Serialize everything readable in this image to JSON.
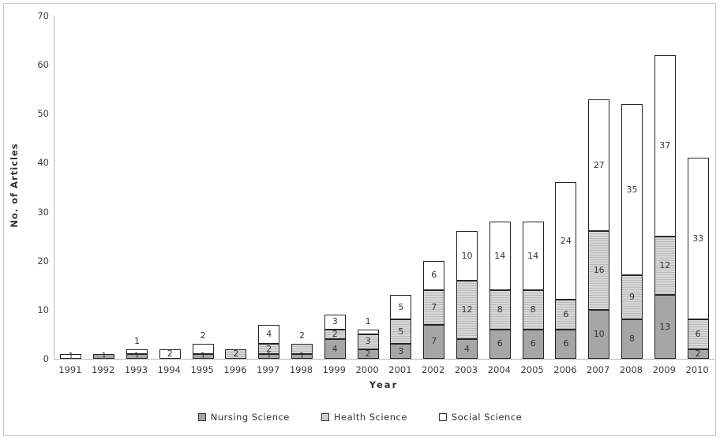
{
  "chart_data": {
    "type": "bar",
    "stacked": true,
    "title": "",
    "xlabel": "Year",
    "ylabel": "No. of Articles",
    "ylim": [
      0,
      70
    ],
    "yticks": [
      0,
      10,
      20,
      30,
      40,
      50,
      60,
      70
    ],
    "grid": false,
    "legend_position": "bottom",
    "categories": [
      "1991",
      "1992",
      "1993",
      "1994",
      "1995",
      "1996",
      "1997",
      "1998",
      "1999",
      "2000",
      "2001",
      "2002",
      "2003",
      "2004",
      "2005",
      "2006",
      "2007",
      "2008",
      "2009",
      "2010"
    ],
    "series": [
      {
        "name": "Nursing Science",
        "pattern": "solid",
        "color": "#a6a6a6",
        "values": [
          0,
          1,
          1,
          0,
          1,
          0,
          1,
          1,
          4,
          2,
          3,
          7,
          4,
          6,
          6,
          6,
          10,
          8,
          13,
          2
        ]
      },
      {
        "name": "Health Science",
        "pattern": "horizontal-stripes",
        "color": "#d7d7d7",
        "stripe_color": "#b9b9b9",
        "values": [
          0,
          0,
          0,
          0,
          0,
          2,
          2,
          2,
          2,
          3,
          5,
          7,
          12,
          8,
          8,
          6,
          16,
          9,
          12,
          6
        ]
      },
      {
        "name": "Social Science",
        "pattern": "solid",
        "color": "#ffffff",
        "values": [
          1,
          0,
          1,
          2,
          2,
          0,
          4,
          0,
          3,
          1,
          5,
          6,
          10,
          14,
          14,
          24,
          27,
          35,
          37,
          33
        ]
      }
    ],
    "totals": [
      1,
      1,
      2,
      2,
      3,
      2,
      7,
      3,
      9,
      6,
      13,
      20,
      26,
      28,
      28,
      36,
      53,
      52,
      62,
      41
    ],
    "bar_border_color": "#262626",
    "axis_color": "#b5b5b5",
    "text_color": "#333333"
  },
  "legend": {
    "items": [
      {
        "label": "Nursing Science"
      },
      {
        "label": "Health Science"
      },
      {
        "label": "Social Science"
      }
    ]
  }
}
